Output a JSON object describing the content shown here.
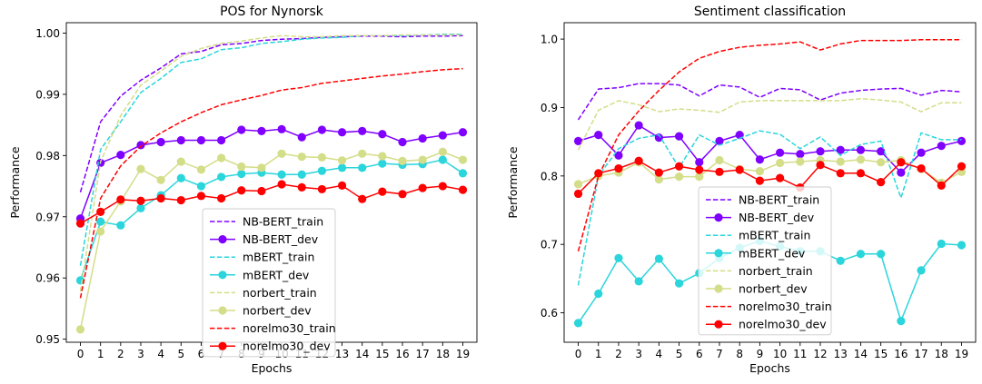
{
  "colors": {
    "nb_bert": "#7f00ff",
    "mbert": "#2ad5db",
    "norbert": "#d4dd88",
    "norelmo": "#ff0000"
  },
  "chart_data": [
    {
      "type": "line",
      "title": "POS for Nynorsk",
      "xlabel": "Epochs",
      "ylabel": "Performance",
      "xlim": [
        -0.7,
        19.7
      ],
      "ylim": [
        0.9495,
        1.0017
      ],
      "x": [
        0,
        1,
        2,
        3,
        4,
        5,
        6,
        7,
        8,
        9,
        10,
        11,
        12,
        13,
        14,
        15,
        16,
        17,
        18,
        19
      ],
      "xticks": [
        "0",
        "1",
        "2",
        "3",
        "4",
        "5",
        "6",
        "7",
        "8",
        "9",
        "10",
        "11",
        "12",
        "13",
        "14",
        "15",
        "16",
        "17",
        "18",
        "19"
      ],
      "yticks": [
        0.95,
        0.96,
        0.97,
        0.98,
        0.99,
        1.0
      ],
      "yticklabels": [
        "0.95",
        "0.96",
        "0.97",
        "0.98",
        "0.99",
        "1.00"
      ],
      "legend_position": "lower-center",
      "series": [
        {
          "name": "NB-BERT_train",
          "style": "dashed",
          "color": "#7f00ff",
          "values": [
            0.974,
            0.9855,
            0.9897,
            0.9923,
            0.9943,
            0.9966,
            0.997,
            0.9981,
            0.9983,
            0.9988,
            0.999,
            0.9991,
            0.9993,
            0.9994,
            0.9995,
            0.9995,
            0.9994,
            0.9995,
            0.9995,
            0.9996
          ]
        },
        {
          "name": "NB-BERT_dev",
          "style": "marker",
          "color": "#7f00ff",
          "values": [
            0.9697,
            0.9788,
            0.9801,
            0.9817,
            0.9822,
            0.9825,
            0.9825,
            0.9825,
            0.9842,
            0.984,
            0.9843,
            0.983,
            0.9842,
            0.9838,
            0.984,
            0.9835,
            0.9822,
            0.9828,
            0.9833,
            0.9838
          ]
        },
        {
          "name": "mBERT_train",
          "style": "dashed",
          "color": "#2ad5db",
          "values": [
            0.962,
            0.981,
            0.9855,
            0.9903,
            0.9926,
            0.9952,
            0.9958,
            0.9973,
            0.9976,
            0.9983,
            0.9986,
            0.999,
            0.9992,
            0.9993,
            0.9996,
            0.9996,
            0.9996,
            0.9997,
            0.9998,
            0.9998
          ]
        },
        {
          "name": "mBERT_dev",
          "style": "marker",
          "color": "#2ad5db",
          "values": [
            0.9596,
            0.9692,
            0.9686,
            0.9714,
            0.9735,
            0.9763,
            0.975,
            0.9765,
            0.977,
            0.9772,
            0.9769,
            0.9769,
            0.9775,
            0.978,
            0.978,
            0.9787,
            0.9785,
            0.9786,
            0.9793,
            0.9771
          ]
        },
        {
          "name": "norbert_train",
          "style": "dashed",
          "color": "#d4dd88",
          "values": [
            0.9578,
            0.979,
            0.9865,
            0.9915,
            0.9938,
            0.9962,
            0.9975,
            0.9983,
            0.9987,
            0.9992,
            0.9996,
            0.9994,
            0.9994,
            0.9996,
            0.9996,
            0.9996,
            0.9997,
            0.9997,
            0.9997,
            0.9997
          ]
        },
        {
          "name": "norbert_dev",
          "style": "marker",
          "color": "#d4dd88",
          "values": [
            0.9516,
            0.9676,
            0.9725,
            0.9778,
            0.976,
            0.979,
            0.9777,
            0.9796,
            0.9782,
            0.978,
            0.9803,
            0.9798,
            0.9797,
            0.9792,
            0.9803,
            0.9799,
            0.9791,
            0.9793,
            0.9806,
            0.9793
          ]
        },
        {
          "name": "norelmo30_train",
          "style": "dashed",
          "color": "#ff0000",
          "values": [
            0.9567,
            0.973,
            0.9783,
            0.9815,
            0.9837,
            0.9855,
            0.987,
            0.9883,
            0.9891,
            0.9898,
            0.9907,
            0.9911,
            0.9918,
            0.9922,
            0.9926,
            0.993,
            0.9933,
            0.9937,
            0.994,
            0.9942
          ]
        },
        {
          "name": "norelmo30_dev",
          "style": "marker",
          "color": "#ff0000",
          "values": [
            0.9689,
            0.9708,
            0.9728,
            0.9726,
            0.973,
            0.9727,
            0.9734,
            0.973,
            0.9743,
            0.9742,
            0.9753,
            0.9748,
            0.9745,
            0.9751,
            0.9729,
            0.9741,
            0.9737,
            0.9747,
            0.975,
            0.9744
          ]
        }
      ]
    },
    {
      "type": "line",
      "title": "Sentiment classification",
      "xlabel": "Epochs",
      "ylabel": "Performance",
      "xlim": [
        -0.7,
        19.7
      ],
      "ylim": [
        0.557,
        1.024
      ],
      "x": [
        0,
        1,
        2,
        3,
        4,
        5,
        6,
        7,
        8,
        9,
        10,
        11,
        12,
        13,
        14,
        15,
        16,
        17,
        18,
        19
      ],
      "xticks": [
        "0",
        "1",
        "2",
        "3",
        "4",
        "5",
        "6",
        "7",
        "8",
        "9",
        "10",
        "11",
        "12",
        "13",
        "14",
        "15",
        "16",
        "17",
        "18",
        "19"
      ],
      "yticks": [
        0.6,
        0.7,
        0.8,
        0.9,
        1.0
      ],
      "yticklabels": [
        "0.6",
        "0.7",
        "0.8",
        "0.9",
        "1.0"
      ],
      "legend_position": "lower-center",
      "series": [
        {
          "name": "NB-BERT_train",
          "style": "dashed",
          "color": "#7f00ff",
          "values": [
            0.882,
            0.927,
            0.929,
            0.935,
            0.935,
            0.933,
            0.917,
            0.933,
            0.93,
            0.915,
            0.928,
            0.926,
            0.911,
            0.921,
            0.925,
            0.927,
            0.928,
            0.918,
            0.925,
            0.923
          ]
        },
        {
          "name": "NB-BERT_dev",
          "style": "marker",
          "color": "#7f00ff",
          "values": [
            0.851,
            0.86,
            0.83,
            0.874,
            0.856,
            0.858,
            0.82,
            0.851,
            0.86,
            0.824,
            0.834,
            0.832,
            0.836,
            0.838,
            0.838,
            0.836,
            0.805,
            0.834,
            0.844,
            0.851
          ]
        },
        {
          "name": "mBERT_train",
          "style": "dashed",
          "color": "#2ad5db",
          "values": [
            0.64,
            0.8,
            0.84,
            0.855,
            0.86,
            0.812,
            0.86,
            0.845,
            0.855,
            0.866,
            0.861,
            0.84,
            0.857,
            0.83,
            0.846,
            0.851,
            0.768,
            0.863,
            0.853,
            0.853
          ]
        },
        {
          "name": "mBERT_dev",
          "style": "marker",
          "color": "#2ad5db",
          "values": [
            0.585,
            0.628,
            0.68,
            0.646,
            0.679,
            0.643,
            0.658,
            0.68,
            0.695,
            0.705,
            0.697,
            0.69,
            0.69,
            0.676,
            0.686,
            0.686,
            0.588,
            0.662,
            0.701,
            0.699
          ]
        },
        {
          "name": "norbert_train",
          "style": "dashed",
          "color": "#d4dd88",
          "values": [
            0.838,
            0.896,
            0.91,
            0.904,
            0.894,
            0.898,
            0.896,
            0.893,
            0.908,
            0.91,
            0.91,
            0.91,
            0.91,
            0.91,
            0.913,
            0.911,
            0.908,
            0.894,
            0.907,
            0.907
          ]
        },
        {
          "name": "norbert_dev",
          "style": "marker",
          "color": "#d4dd88",
          "values": [
            0.788,
            0.8,
            0.805,
            0.82,
            0.795,
            0.799,
            0.799,
            0.823,
            0.81,
            0.807,
            0.819,
            0.821,
            0.823,
            0.821,
            0.824,
            0.82,
            0.823,
            0.81,
            0.79,
            0.806
          ]
        },
        {
          "name": "norelmo30_train",
          "style": "dashed",
          "color": "#ff0000",
          "values": [
            0.69,
            0.8,
            0.86,
            0.895,
            0.925,
            0.952,
            0.972,
            0.982,
            0.988,
            0.991,
            0.993,
            0.996,
            0.984,
            0.993,
            0.998,
            0.998,
            0.998,
            0.999,
            0.999,
            0.999
          ]
        },
        {
          "name": "norelmo30_dev",
          "style": "marker",
          "color": "#ff0000",
          "values": [
            0.774,
            0.804,
            0.811,
            0.822,
            0.805,
            0.814,
            0.809,
            0.806,
            0.809,
            0.793,
            0.797,
            0.783,
            0.816,
            0.804,
            0.804,
            0.791,
            0.82,
            0.811,
            0.786,
            0.814
          ]
        }
      ]
    }
  ]
}
